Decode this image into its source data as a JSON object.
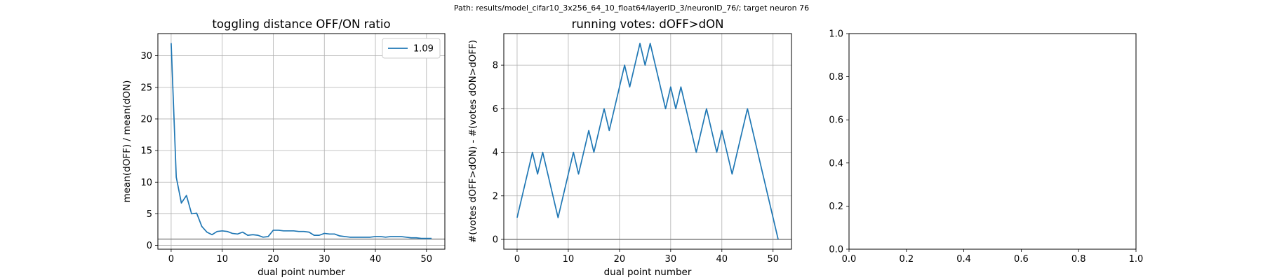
{
  "figure": {
    "suptitle": "Path: results/model_cifar10_3x256_64_10_float64/layerID_3/neuronID_76/; target neuron 76"
  },
  "colors": {
    "series": "#1f77b4",
    "reference_line": "#808080",
    "grid": "#b0b0b0"
  },
  "chart_data": [
    {
      "type": "line",
      "title": "toggling distance OFF/ON ratio",
      "xlabel": "dual point number",
      "ylabel": "mean(dOFF) / mean(dON)",
      "xlim": [
        -2.6,
        53.6
      ],
      "ylim": [
        -0.6,
        33.5
      ],
      "xticks": [
        0,
        10,
        20,
        30,
        40,
        50
      ],
      "yticks": [
        0,
        5,
        10,
        15,
        20,
        25,
        30
      ],
      "grid": true,
      "legend": "top-right",
      "reference_line_y": 1,
      "series": [
        {
          "name": "1.09",
          "x": [
            0,
            1,
            2,
            3,
            4,
            5,
            6,
            7,
            8,
            9,
            10,
            11,
            12,
            13,
            14,
            15,
            16,
            17,
            18,
            19,
            20,
            21,
            22,
            23,
            24,
            25,
            26,
            27,
            28,
            29,
            30,
            31,
            32,
            33,
            34,
            35,
            36,
            37,
            38,
            39,
            40,
            41,
            42,
            43,
            44,
            45,
            46,
            47,
            48,
            49,
            50,
            51
          ],
          "values": [
            32.0,
            10.8,
            6.7,
            7.9,
            5.0,
            5.1,
            3.0,
            2.1,
            1.7,
            2.2,
            2.3,
            2.2,
            1.9,
            1.8,
            2.1,
            1.6,
            1.7,
            1.6,
            1.3,
            1.4,
            2.4,
            2.4,
            2.3,
            2.3,
            2.3,
            2.2,
            2.2,
            2.1,
            1.6,
            1.6,
            1.9,
            1.8,
            1.8,
            1.5,
            1.4,
            1.3,
            1.3,
            1.3,
            1.3,
            1.3,
            1.4,
            1.4,
            1.3,
            1.4,
            1.4,
            1.4,
            1.3,
            1.2,
            1.2,
            1.1,
            1.1,
            1.1
          ]
        }
      ]
    },
    {
      "type": "line",
      "title": "running votes: dOFF>dON",
      "xlabel": "dual point number",
      "ylabel": "#(votes dOFF>dON) - #(votes dON>dOFF)",
      "xlim": [
        -2.6,
        53.6
      ],
      "ylim": [
        -0.45,
        9.45
      ],
      "xticks": [
        0,
        10,
        20,
        30,
        40,
        50
      ],
      "yticks": [
        0,
        2,
        4,
        6,
        8
      ],
      "grid": true,
      "reference_line_y": 0,
      "series": [
        {
          "x": [
            0,
            1,
            2,
            3,
            4,
            5,
            6,
            7,
            8,
            9,
            10,
            11,
            12,
            13,
            14,
            15,
            16,
            17,
            18,
            19,
            20,
            21,
            22,
            23,
            24,
            25,
            26,
            27,
            28,
            29,
            30,
            31,
            32,
            33,
            34,
            35,
            36,
            37,
            38,
            39,
            40,
            41,
            42,
            43,
            44,
            45,
            46,
            47,
            48,
            49,
            50,
            51
          ],
          "values": [
            1,
            2,
            3,
            4,
            3,
            4,
            3,
            2,
            1,
            2,
            3,
            4,
            3,
            4,
            5,
            4,
            5,
            6,
            5,
            6,
            7,
            8,
            7,
            8,
            9,
            8,
            9,
            8,
            7,
            6,
            7,
            6,
            7,
            6,
            5,
            4,
            5,
            6,
            5,
            4,
            5,
            4,
            3,
            4,
            5,
            6,
            5,
            4,
            3,
            2,
            1,
            0
          ]
        }
      ]
    },
    {
      "type": "line",
      "xlim": [
        0,
        1
      ],
      "ylim": [
        0,
        1
      ],
      "xticks": [
        0.0,
        0.2,
        0.4,
        0.6,
        0.8,
        1.0
      ],
      "yticks": [
        0.0,
        0.2,
        0.4,
        0.6,
        0.8,
        1.0
      ],
      "tick_format": "0.0",
      "grid": false,
      "series": []
    }
  ]
}
